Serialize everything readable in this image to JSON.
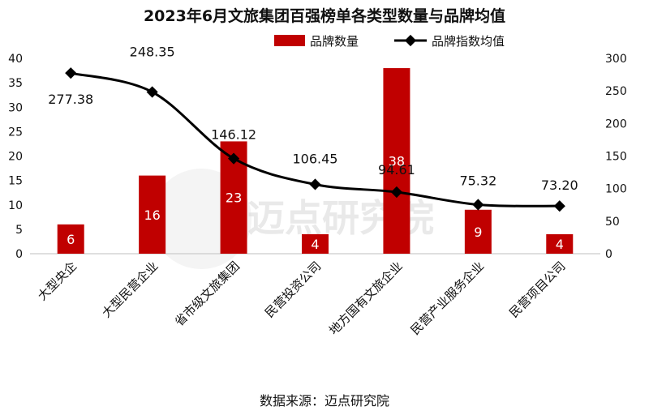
{
  "chart_data": {
    "type": "bar",
    "title": "2023年6月文旅集团百强榜单各类型数量与品牌均值",
    "categories": [
      "大型央企",
      "大型民营企业",
      "省市级文旅集团",
      "民营投资公司",
      "地方国有文旅企业",
      "民营产业服务企业",
      "民营项目公司"
    ],
    "series": [
      {
        "name": "品牌数量",
        "type": "bar",
        "axis": "left",
        "values": [
          6,
          16,
          23,
          4,
          38,
          9,
          4
        ],
        "labels": [
          "6",
          "16",
          "23",
          "4",
          "38",
          "9",
          "4"
        ],
        "color": "#c00000"
      },
      {
        "name": "品牌指数均值",
        "type": "line",
        "axis": "right",
        "values": [
          277.38,
          248.35,
          146.12,
          106.45,
          94.61,
          75.32,
          73.2
        ],
        "labels": [
          "277.38",
          "248.35",
          "146.12",
          "106.45",
          "94.61",
          "75.32",
          "73.20"
        ],
        "color": "#000000"
      }
    ],
    "left_axis": {
      "ylim": [
        0,
        40
      ],
      "ticks": [
        "0",
        "5",
        "10",
        "15",
        "20",
        "25",
        "30",
        "35",
        "40"
      ]
    },
    "right_axis": {
      "ylim": [
        0,
        300
      ],
      "ticks": [
        "0",
        "50",
        "100",
        "150",
        "200",
        "250",
        "300"
      ]
    },
    "legend_position": "top-right",
    "grid": false
  },
  "source_text": "数据来源：迈点研究院",
  "watermark": "迈点研究院"
}
